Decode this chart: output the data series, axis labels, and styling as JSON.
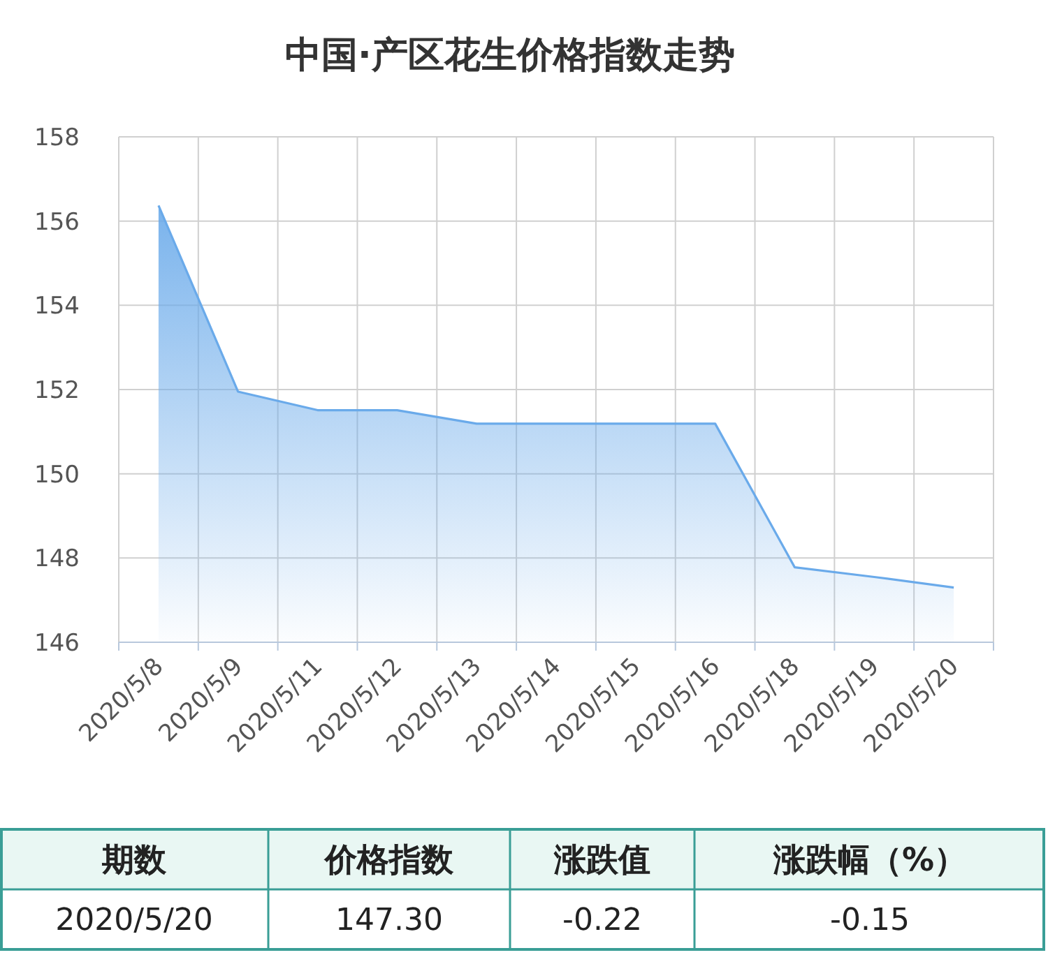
{
  "chart_data": {
    "type": "area",
    "title": "中国·产区花生价格指数走势",
    "categories": [
      "2020/5/8",
      "2020/5/9",
      "2020/5/11",
      "2020/5/12",
      "2020/5/13",
      "2020/5/14",
      "2020/5/15",
      "2020/5/16",
      "2020/5/18",
      "2020/5/19",
      "2020/5/20"
    ],
    "series": [
      {
        "color": "#6aaaea",
        "values": [
          156.37,
          151.95,
          151.51,
          151.51,
          151.19,
          151.19,
          151.19,
          151.19,
          147.78,
          147.55,
          147.3
        ]
      }
    ],
    "ylim": [
      146,
      158
    ],
    "yticks": [
      146,
      148,
      150,
      152,
      154,
      156,
      158
    ],
    "grid": true,
    "annotations": [
      "期数",
      "价格指数",
      "涨跌值",
      "涨跌幅（%）",
      "2020/5/20",
      "147.30",
      "-0.22",
      "-0.15"
    ]
  }
}
